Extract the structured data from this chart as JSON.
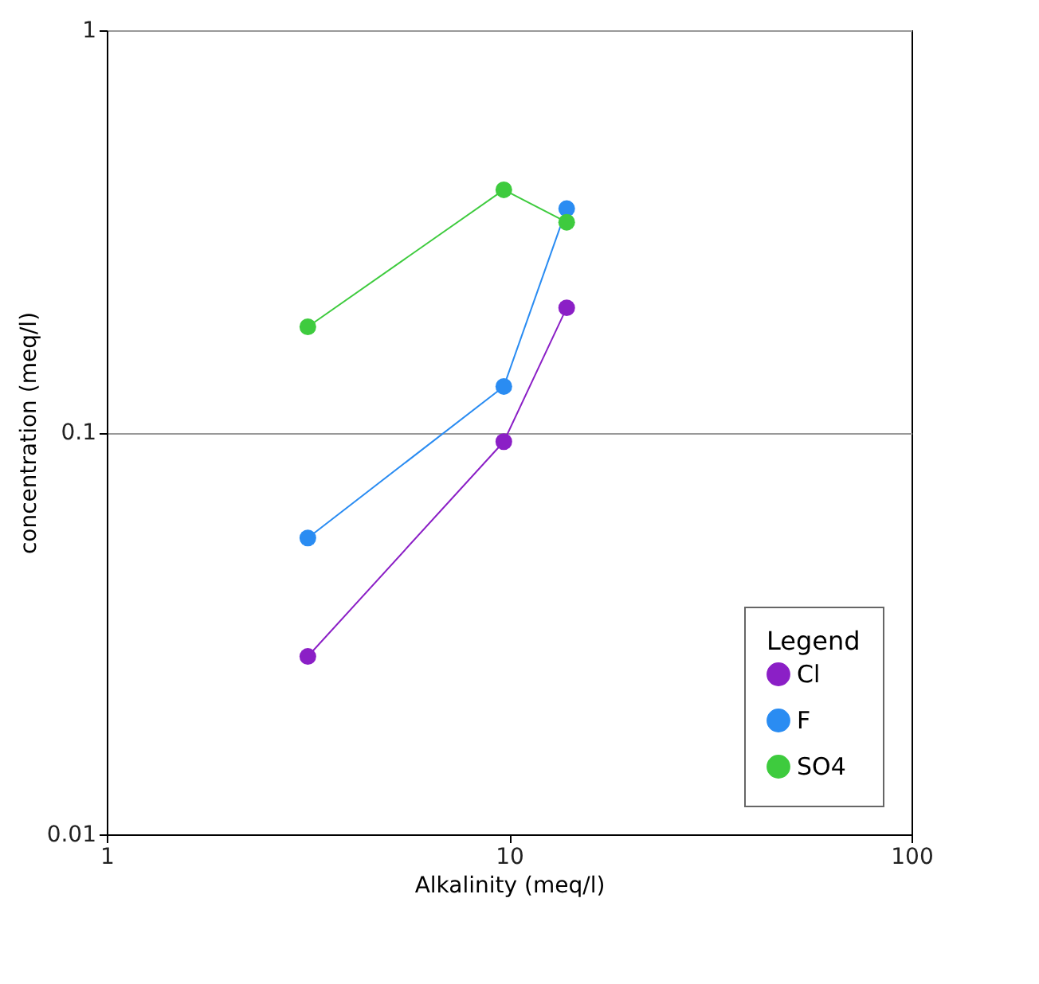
{
  "chart_data": {
    "type": "line",
    "xlabel": "Alkalinity (meq/l)",
    "ylabel": "concentration (meq/l)",
    "legend_title": "Legend",
    "log": "xy",
    "xlim": [
      1,
      100
    ],
    "xticks": [
      1,
      10,
      100
    ],
    "ylim": [
      0.01,
      1
    ],
    "yticks": [
      0.01,
      0.1,
      1
    ],
    "grid": "y",
    "legend": "bottom right",
    "marker": "circle",
    "line_style": "solid",
    "x": [
      3.16,
      9.7,
      13.9
    ],
    "series": [
      {
        "name": "Cl",
        "color": "#8b1fc6",
        "values": [
          0.0277,
          0.0948,
          0.204
        ]
      },
      {
        "name": "F",
        "color": "#2a8cf2",
        "values": [
          0.0546,
          0.13,
          0.36
        ]
      },
      {
        "name": "SO4",
        "color": "#3ecb3e",
        "values": [
          0.183,
          0.401,
          0.333
        ]
      }
    ]
  }
}
